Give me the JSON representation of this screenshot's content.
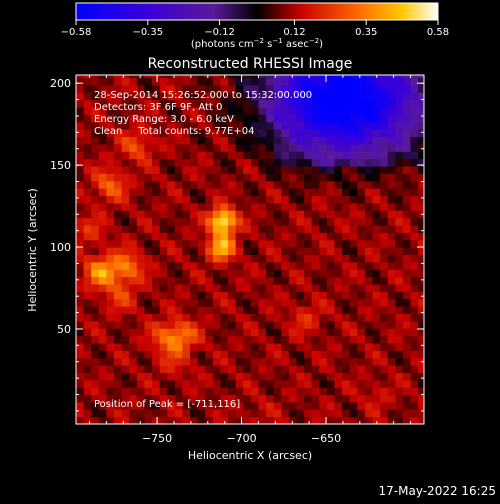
{
  "chart_data": {
    "type": "heatmap",
    "title": "Reconstructed RHESSI Image",
    "xlabel": "Heliocentric X (arcsec)",
    "ylabel": "Heliocentric Y (arcsec)",
    "xlim": [
      -798,
      -592
    ],
    "ylim": [
      -8,
      205
    ],
    "x_ticks": [
      -750,
      -700,
      -650
    ],
    "x_tick_labels": [
      "−750",
      "−700",
      "−650"
    ],
    "y_ticks": [
      50,
      100,
      150,
      200
    ],
    "y_tick_labels": [
      "50",
      "100",
      "150",
      "200"
    ],
    "colorbar": {
      "range": [
        -0.58,
        0.58
      ],
      "ticks": [
        -0.58,
        -0.35,
        -0.12,
        0.12,
        0.35,
        0.58
      ],
      "tick_labels": [
        "−0.58",
        "−0.35",
        "−0.12",
        "0.12",
        "0.35",
        "0.58"
      ],
      "unit_text": "(photons cm",
      "unit_exp1": "−2",
      "unit_mid": " s",
      "unit_exp2": "−1",
      "unit_mid2": " asec",
      "unit_exp3": "−2",
      "unit_close": ")"
    },
    "info_lines": [
      "28-Sep-2014 15:26:52.000 to 15:32:00.000",
      "Detectors: 3F 6F 9F, Att 0",
      "Energy Range: 3.0 - 6.0 keV",
      "Clean     Total counts: 9.77E+04"
    ],
    "peak_text": "Position of Peak = [-711,116]",
    "peak": {
      "x": -711,
      "y": 116,
      "value": 0.58
    },
    "sources": [
      {
        "x": -711,
        "y": 116,
        "value": 0.58
      },
      {
        "x": -712,
        "y": 100,
        "value": 0.45
      },
      {
        "x": -783,
        "y": 85,
        "value": 0.38
      },
      {
        "x": -768,
        "y": 88,
        "value": 0.33
      },
      {
        "x": -778,
        "y": 138,
        "value": 0.3
      },
      {
        "x": -735,
        "y": 46,
        "value": 0.3
      },
      {
        "x": -745,
        "y": 45,
        "value": 0.26
      },
      {
        "x": -762,
        "y": 162,
        "value": 0.26
      },
      {
        "x": -772,
        "y": 70,
        "value": 0.22
      },
      {
        "x": -790,
        "y": 110,
        "value": 0.2
      },
      {
        "x": -740,
        "y": 30,
        "value": 0.18
      },
      {
        "x": -662,
        "y": 57,
        "value": 0.2
      },
      {
        "x": -620,
        "y": 10,
        "value": 0.16
      },
      {
        "x": -690,
        "y": 0,
        "value": 0.14
      },
      {
        "x": -650,
        "y": 120,
        "value": 0.12
      }
    ],
    "negative_region": {
      "x": -640,
      "y": 190,
      "value": -0.55
    },
    "grid": false
  },
  "footer_date": "17-May-2022 16:25",
  "colors": {
    "background": "#000000",
    "text": "#ffffff"
  }
}
